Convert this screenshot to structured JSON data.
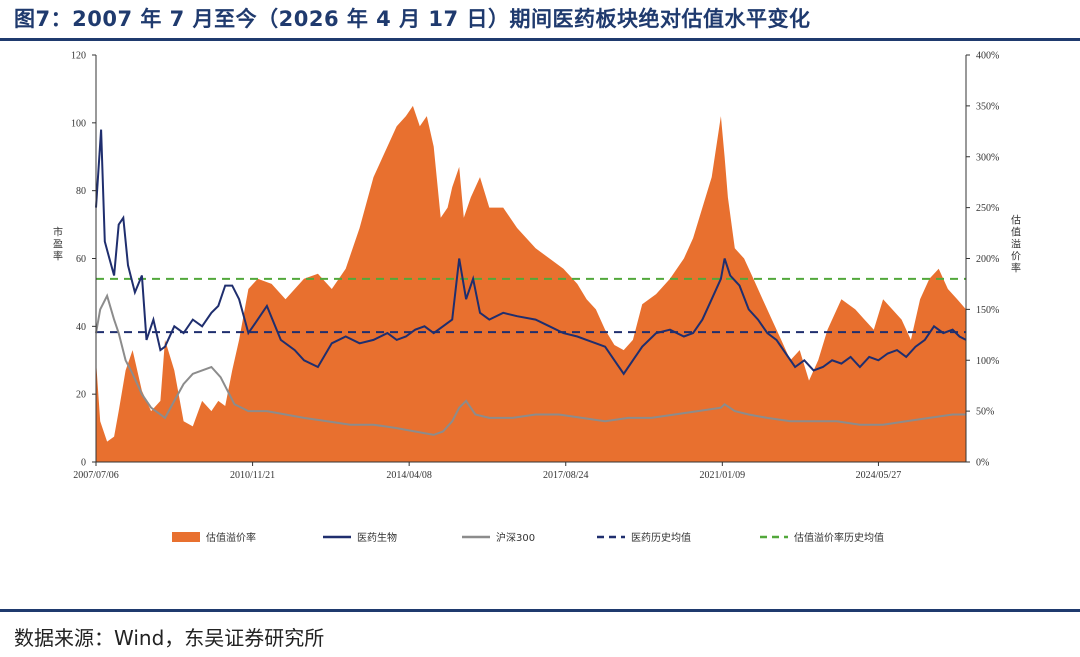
{
  "title": "图7：2007 年 7 月至今（2026 年 4 月 17 日）期间医药板块绝对估值水平变化",
  "source": "数据来源：Wind，东吴证券研究所",
  "colors": {
    "premium": "#E8702F",
    "pharma": "#1F2E6E",
    "hs300": "#8C8C8C",
    "pharma_avg": "#1F2E6E",
    "premium_avg": "#52A83B",
    "title": "#1F3A6E"
  },
  "chart_data": {
    "type": "line",
    "ylabel_left": "市盈率",
    "ylabel_right": "估值溢价率",
    "xlim": [
      2007.51,
      2026.29
    ],
    "ylim_left": [
      0,
      120
    ],
    "ylim_right": [
      0,
      400
    ],
    "yticks_left": [
      "0",
      "20",
      "40",
      "60",
      "80",
      "100",
      "120"
    ],
    "yticks_right": [
      "0%",
      "50%",
      "100%",
      "150%",
      "200%",
      "250%",
      "300%",
      "350%",
      "400%"
    ],
    "xticks": [
      {
        "label": "2007/07/06",
        "t": 2007.51
      },
      {
        "label": "2010/11/21",
        "t": 2010.89
      },
      {
        "label": "2014/04/08",
        "t": 2014.27
      },
      {
        "label": "2017/08/24",
        "t": 2017.65
      },
      {
        "label": "2021/01/09",
        "t": 2021.03
      },
      {
        "label": "2024/05/27",
        "t": 2024.4
      }
    ],
    "grid": false,
    "legend_position": "bottom",
    "series": [
      {
        "name": "估值溢价率",
        "axis": "right",
        "kind": "area",
        "x": [
          2007.51,
          2007.6,
          2007.75,
          2007.9,
          2008.0,
          2008.15,
          2008.3,
          2008.5,
          2008.7,
          2008.9,
          2009.0,
          2009.2,
          2009.4,
          2009.6,
          2009.8,
          2010.0,
          2010.15,
          2010.3,
          2010.45,
          2010.6,
          2010.8,
          2011.0,
          2011.3,
          2011.6,
          2012.0,
          2012.3,
          2012.6,
          2012.9,
          2013.2,
          2013.5,
          2013.8,
          2014.0,
          2014.2,
          2014.35,
          2014.5,
          2014.65,
          2014.8,
          2014.95,
          2015.1,
          2015.2,
          2015.35,
          2015.45,
          2015.6,
          2015.8,
          2016.0,
          2016.3,
          2016.6,
          2017.0,
          2017.3,
          2017.6,
          2017.9,
          2018.1,
          2018.3,
          2018.5,
          2018.7,
          2018.9,
          2019.1,
          2019.3,
          2019.6,
          2019.9,
          2020.2,
          2020.4,
          2020.6,
          2020.8,
          2021.0,
          2021.08,
          2021.15,
          2021.3,
          2021.5,
          2021.7,
          2021.9,
          2022.1,
          2022.3,
          2022.5,
          2022.7,
          2022.9,
          2023.1,
          2023.3,
          2023.6,
          2023.9,
          2024.1,
          2024.3,
          2024.5,
          2024.7,
          2024.9,
          2025.1,
          2025.3,
          2025.5,
          2025.7,
          2025.9,
          2026.1,
          2026.29
        ],
        "values": [
          100,
          40,
          20,
          25,
          50,
          90,
          110,
          70,
          50,
          60,
          120,
          90,
          40,
          35,
          60,
          50,
          60,
          55,
          90,
          120,
          170,
          180,
          175,
          160,
          180,
          185,
          170,
          190,
          230,
          280,
          310,
          330,
          340,
          350,
          330,
          340,
          310,
          240,
          250,
          270,
          290,
          240,
          260,
          280,
          250,
          250,
          230,
          210,
          200,
          190,
          175,
          160,
          150,
          130,
          115,
          110,
          120,
          155,
          165,
          180,
          200,
          220,
          250,
          280,
          340,
          300,
          260,
          210,
          200,
          180,
          160,
          140,
          120,
          100,
          110,
          80,
          100,
          130,
          160,
          150,
          140,
          130,
          160,
          150,
          140,
          120,
          160,
          180,
          190,
          170,
          160,
          150
        ]
      },
      {
        "name": "医药生物",
        "axis": "left",
        "kind": "line",
        "x": [
          2007.51,
          2007.62,
          2007.7,
          2007.8,
          2007.9,
          2008.0,
          2008.1,
          2008.2,
          2008.35,
          2008.5,
          2008.6,
          2008.75,
          2008.9,
          2009.0,
          2009.2,
          2009.4,
          2009.6,
          2009.8,
          2010.0,
          2010.15,
          2010.3,
          2010.45,
          2010.6,
          2010.8,
          2011.0,
          2011.2,
          2011.5,
          2011.8,
          2012.0,
          2012.3,
          2012.6,
          2012.9,
          2013.2,
          2013.5,
          2013.8,
          2014.0,
          2014.2,
          2014.4,
          2014.6,
          2014.8,
          2015.0,
          2015.2,
          2015.35,
          2015.5,
          2015.65,
          2015.8,
          2016.0,
          2016.3,
          2016.6,
          2017.0,
          2017.3,
          2017.6,
          2017.9,
          2018.1,
          2018.3,
          2018.5,
          2018.7,
          2018.9,
          2019.1,
          2019.3,
          2019.6,
          2019.9,
          2020.2,
          2020.4,
          2020.6,
          2020.8,
          2021.0,
          2021.08,
          2021.2,
          2021.4,
          2021.6,
          2021.8,
          2022.0,
          2022.2,
          2022.4,
          2022.6,
          2022.8,
          2023.0,
          2023.2,
          2023.4,
          2023.6,
          2023.8,
          2024.0,
          2024.2,
          2024.4,
          2024.6,
          2024.8,
          2025.0,
          2025.2,
          2025.4,
          2025.6,
          2025.8,
          2026.0,
          2026.15,
          2026.29
        ],
        "values": [
          75,
          98,
          65,
          60,
          55,
          70,
          72,
          58,
          50,
          55,
          36,
          42,
          33,
          34,
          40,
          38,
          42,
          40,
          44,
          46,
          52,
          52,
          48,
          38,
          42,
          46,
          36,
          33,
          30,
          28,
          35,
          37,
          35,
          36,
          38,
          36,
          37,
          39,
          40,
          38,
          40,
          42,
          60,
          48,
          54,
          44,
          42,
          44,
          43,
          42,
          40,
          38,
          37,
          36,
          35,
          34,
          30,
          26,
          30,
          34,
          38,
          39,
          37,
          38,
          42,
          48,
          54,
          60,
          55,
          52,
          45,
          42,
          38,
          36,
          32,
          28,
          30,
          27,
          28,
          30,
          29,
          31,
          28,
          31,
          30,
          32,
          33,
          31,
          34,
          36,
          40,
          38,
          39,
          37,
          36
        ]
      },
      {
        "name": "沪深300",
        "axis": "left",
        "kind": "line",
        "x": [
          2007.51,
          2007.6,
          2007.75,
          2007.9,
          2008.0,
          2008.15,
          2008.3,
          2008.5,
          2008.7,
          2008.9,
          2009.0,
          2009.2,
          2009.4,
          2009.6,
          2009.8,
          2010.0,
          2010.2,
          2010.5,
          2010.8,
          2011.2,
          2011.6,
          2012.0,
          2012.5,
          2013.0,
          2013.5,
          2014.0,
          2014.4,
          2014.8,
          2015.0,
          2015.2,
          2015.35,
          2015.5,
          2015.7,
          2016.0,
          2016.5,
          2017.0,
          2017.5,
          2018.0,
          2018.5,
          2019.0,
          2019.5,
          2020.0,
          2020.5,
          2021.0,
          2021.08,
          2021.3,
          2021.6,
          2022.0,
          2022.5,
          2023.0,
          2023.5,
          2024.0,
          2024.5,
          2025.0,
          2025.5,
          2026.0,
          2026.29
        ],
        "values": [
          38,
          45,
          49,
          42,
          38,
          30,
          26,
          20,
          16,
          14,
          13,
          18,
          23,
          26,
          27,
          28,
          25,
          17,
          15,
          15,
          14,
          13,
          12,
          11,
          11,
          10,
          9,
          8,
          9,
          12,
          16,
          18,
          14,
          13,
          13,
          14,
          14,
          13,
          12,
          13,
          13,
          14,
          15,
          16,
          17,
          15,
          14,
          13,
          12,
          12,
          12,
          11,
          11,
          12,
          13,
          14,
          14
        ]
      },
      {
        "name": "医药历史均值",
        "axis": "left",
        "kind": "hline",
        "value": 38.3
      },
      {
        "name": "估值溢价率历史均值",
        "axis": "right",
        "kind": "hline",
        "value": 180
      }
    ]
  }
}
